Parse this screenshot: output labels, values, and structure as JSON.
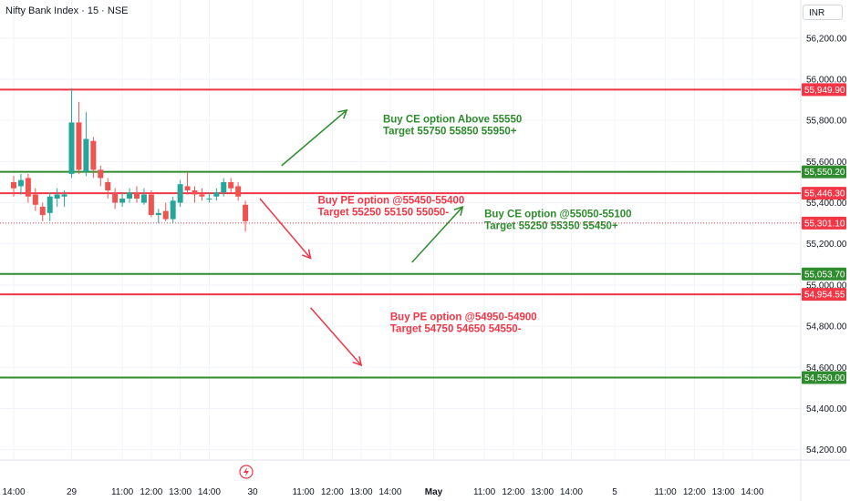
{
  "header": {
    "symbol_title": "Nifty Bank Index · 15 · NSE",
    "currency": "INR"
  },
  "chart_data": {
    "type": "candlestick",
    "y_axis": {
      "ticks": [
        "56,200.00",
        "56,000.00",
        "55,800.00",
        "55,600.00",
        "55,400.00",
        "55,200.00",
        "55,000.00",
        "54,800.00",
        "54,600.00",
        "54,400.00",
        "54,200.00"
      ],
      "tick_values": [
        56200,
        56000,
        55800,
        55600,
        55400,
        55200,
        55000,
        54800,
        54600,
        54400,
        54200
      ],
      "range": [
        54130,
        56400
      ]
    },
    "x_axis": {
      "ticks": [
        "14:00",
        "29",
        "11:00",
        "12:00",
        "13:00",
        "14:00",
        "30",
        "11:00",
        "12:00",
        "13:00",
        "14:00",
        "May",
        "11:00",
        "12:00",
        "13:00",
        "14:00",
        "5",
        "11:00",
        "12:00",
        "13:00",
        "14:00"
      ],
      "tick_index": [
        0,
        8,
        15,
        19,
        23,
        27,
        33,
        40,
        44,
        48,
        52,
        58,
        65,
        69,
        73,
        77,
        83,
        90,
        94,
        98,
        102
      ]
    },
    "candles": [
      {
        "o": 55500,
        "h": 55530,
        "l": 55430,
        "c": 55470
      },
      {
        "o": 55480,
        "h": 55540,
        "l": 55440,
        "c": 55510
      },
      {
        "o": 55520,
        "h": 55540,
        "l": 55400,
        "c": 55430
      },
      {
        "o": 55440,
        "h": 55470,
        "l": 55360,
        "c": 55390
      },
      {
        "o": 55380,
        "h": 55400,
        "l": 55310,
        "c": 55340
      },
      {
        "o": 55350,
        "h": 55450,
        "l": 55310,
        "c": 55430
      },
      {
        "o": 55420,
        "h": 55470,
        "l": 55380,
        "c": 55440
      },
      {
        "o": 55430,
        "h": 55460,
        "l": 55380,
        "c": 55440
      },
      {
        "o": 55540,
        "h": 55955,
        "l": 55520,
        "c": 55790
      },
      {
        "o": 55790,
        "h": 55890,
        "l": 55540,
        "c": 55560
      },
      {
        "o": 55550,
        "h": 55840,
        "l": 55530,
        "c": 55710
      },
      {
        "o": 55700,
        "h": 55720,
        "l": 55520,
        "c": 55560
      },
      {
        "o": 55560,
        "h": 55580,
        "l": 55480,
        "c": 55520
      },
      {
        "o": 55500,
        "h": 55520,
        "l": 55420,
        "c": 55460
      },
      {
        "o": 55450,
        "h": 55470,
        "l": 55370,
        "c": 55400
      },
      {
        "o": 55400,
        "h": 55450,
        "l": 55380,
        "c": 55420
      },
      {
        "o": 55420,
        "h": 55470,
        "l": 55400,
        "c": 55450
      },
      {
        "o": 55450,
        "h": 55480,
        "l": 55400,
        "c": 55420
      },
      {
        "o": 55400,
        "h": 55470,
        "l": 55390,
        "c": 55440
      },
      {
        "o": 55440,
        "h": 55460,
        "l": 55330,
        "c": 55340
      },
      {
        "o": 55340,
        "h": 55370,
        "l": 55300,
        "c": 55350
      },
      {
        "o": 55360,
        "h": 55400,
        "l": 55310,
        "c": 55320
      },
      {
        "o": 55320,
        "h": 55430,
        "l": 55300,
        "c": 55410
      },
      {
        "o": 55400,
        "h": 55510,
        "l": 55380,
        "c": 55490
      },
      {
        "o": 55480,
        "h": 55550,
        "l": 55440,
        "c": 55460
      },
      {
        "o": 55460,
        "h": 55480,
        "l": 55400,
        "c": 55440
      },
      {
        "o": 55440,
        "h": 55470,
        "l": 55410,
        "c": 55430
      },
      {
        "o": 55420,
        "h": 55450,
        "l": 55400,
        "c": 55420
      },
      {
        "o": 55430,
        "h": 55470,
        "l": 55410,
        "c": 55450
      },
      {
        "o": 55450,
        "h": 55520,
        "l": 55430,
        "c": 55500
      },
      {
        "o": 55500,
        "h": 55520,
        "l": 55450,
        "c": 55470
      },
      {
        "o": 55480,
        "h": 55500,
        "l": 55410,
        "c": 55430
      },
      {
        "o": 55390,
        "h": 55410,
        "l": 55260,
        "c": 55310
      }
    ],
    "horizontal_levels": [
      {
        "label": "55,949.90",
        "value": 55949.9,
        "color": "#f23645"
      },
      {
        "label": "55,550.20",
        "value": 55550.2,
        "color": "#2e8b2e"
      },
      {
        "label": "55,446.30",
        "value": 55446.3,
        "color": "#f23645"
      },
      {
        "label": "55,301.10",
        "value": 55301.1,
        "color": "#f23645",
        "dotted": true
      },
      {
        "label": "55,053.70",
        "value": 55053.7,
        "color": "#2e8b2e"
      },
      {
        "label": "54,954.55",
        "value": 54954.55,
        "color": "#f23645"
      },
      {
        "label": "54,550.00",
        "value": 54550.0,
        "color": "#2e8b2e"
      }
    ],
    "annotations": [
      {
        "line1": "Buy CE option Above 55550",
        "line2": "Target 55750 55850 55950+",
        "color": "#2e8b2e"
      },
      {
        "line1": "Buy PE option @55450-55400",
        "line2": "Target 55250 55150 55050-",
        "color": "#f23645"
      },
      {
        "line1": "Buy CE option @55050-55100",
        "line2": "Target 55250 55350 55450+",
        "color": "#2e8b2e"
      },
      {
        "line1": "Buy PE option @54950-54900",
        "line2": "Target 54750 54650 54550-",
        "color": "#f23645"
      }
    ],
    "arrows": [
      {
        "from": {
          "i": 37,
          "v": 55580
        },
        "to": {
          "i": 46,
          "v": 55850
        },
        "color": "#2e8b2e"
      },
      {
        "from": {
          "i": 34,
          "v": 55420
        },
        "to": {
          "i": 41,
          "v": 55130
        },
        "color": "#f23645"
      },
      {
        "from": {
          "i": 55,
          "v": 55110
        },
        "to": {
          "i": 62,
          "v": 55380
        },
        "color": "#2e8b2e"
      },
      {
        "from": {
          "i": 41,
          "v": 54890
        },
        "to": {
          "i": 48,
          "v": 54610
        },
        "color": "#f23645"
      }
    ],
    "colors": {
      "up": "#26a69a",
      "down": "#ef5350",
      "grid": "#f0f3fa",
      "axis_text": "#131722"
    },
    "grid": true
  }
}
